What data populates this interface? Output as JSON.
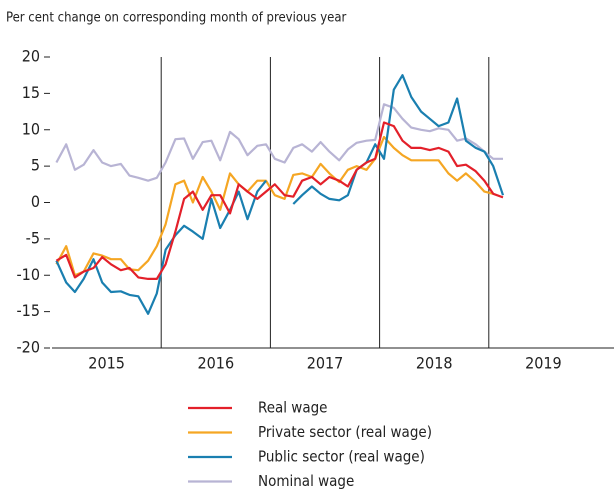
{
  "chart_data": {
    "type": "line",
    "title": "Per cent change on corresponding month of previous year",
    "x": [
      2015.04,
      2015.13,
      2015.21,
      2015.29,
      2015.38,
      2015.46,
      2015.54,
      2015.63,
      2015.71,
      2015.79,
      2015.88,
      2015.96,
      2016.04,
      2016.13,
      2016.21,
      2016.29,
      2016.38,
      2016.46,
      2016.54,
      2016.63,
      2016.71,
      2016.79,
      2016.88,
      2016.96,
      2017.04,
      2017.13,
      2017.21,
      2017.29,
      2017.38,
      2017.46,
      2017.54,
      2017.63,
      2017.71,
      2017.79,
      2017.88,
      2017.96,
      2018.04,
      2018.13,
      2018.21,
      2018.29,
      2018.38,
      2018.46,
      2018.54,
      2018.63,
      2018.71,
      2018.79,
      2018.88,
      2018.96,
      2019.04,
      2019.13
    ],
    "series": [
      {
        "name": "Real wage",
        "color": "#e3202a",
        "values": [
          -8,
          -7.2,
          -10.3,
          -9.5,
          -9,
          -7.5,
          -8.5,
          -9.3,
          -9,
          -10.3,
          -10.5,
          -10.5,
          -8.5,
          -4,
          0.5,
          1.5,
          -1,
          1,
          1,
          -1.5,
          2.5,
          1.5,
          0.5,
          1.5,
          2.5,
          1,
          0.8,
          3,
          3.5,
          2.5,
          3.5,
          3,
          2.2,
          4.5,
          5.5,
          6,
          11,
          10.5,
          8.5,
          7.5,
          7.5,
          7.2,
          7.5,
          7,
          5,
          5.2,
          4.3,
          3,
          1.2,
          0.7
        ]
      },
      {
        "name": "Private sector (real wage)",
        "color": "#f5a623",
        "values": [
          -8.5,
          -6,
          -10,
          -9.5,
          -7,
          -7.3,
          -7.8,
          -7.8,
          -9.2,
          -9.3,
          -8,
          -6,
          -3,
          2.5,
          3,
          0,
          3.5,
          1.5,
          -1,
          4,
          2.5,
          1.5,
          3,
          3,
          1,
          0.5,
          3.8,
          4,
          3.5,
          5.3,
          4,
          2.8,
          4.5,
          5,
          4.5,
          6,
          9,
          7.5,
          6.5,
          5.8,
          5.8,
          5.8,
          5.8,
          4,
          3,
          4,
          2.8,
          1.5,
          1.2,
          null
        ]
      },
      {
        "name": "Public sector (real wage)",
        "color": "#1a7fb0",
        "values": [
          -8,
          -11,
          -12.3,
          -10.5,
          -7.8,
          -11,
          -12.3,
          -12.2,
          -12.7,
          -12.9,
          -15.3,
          -12.5,
          -6.5,
          -4.5,
          -3.2,
          -4,
          -5,
          0.5,
          -3.5,
          -1,
          1.5,
          -2.3,
          1.5,
          3,
          null,
          null,
          -0.2,
          1,
          2.2,
          1.2,
          0.5,
          0.3,
          1,
          4.5,
          5.5,
          8,
          6,
          15.5,
          17.5,
          14.5,
          12.5,
          11.5,
          10.5,
          11,
          14.3,
          8.5,
          7.5,
          7,
          5,
          1
        ]
      },
      {
        "name": "Nominal wage",
        "color": "#b8b4d4",
        "values": [
          5.5,
          8,
          4.5,
          5.2,
          7.2,
          5.5,
          5,
          5.3,
          3.7,
          3.4,
          3,
          3.4,
          5.5,
          8.7,
          8.8,
          6,
          8.3,
          8.5,
          5.8,
          9.7,
          8.7,
          6.5,
          7.8,
          8,
          6,
          5.5,
          7.5,
          8,
          7,
          8.3,
          7,
          5.8,
          7.3,
          8.2,
          8.5,
          8.6,
          13.5,
          13,
          11.5,
          10.3,
          10,
          9.8,
          10.2,
          10,
          8.5,
          8.8,
          8,
          7,
          6,
          6
        ]
      }
    ],
    "xlim": [
      2015,
      2020
    ],
    "xticks": [
      {
        "value": 2015.5,
        "label": "2015"
      },
      {
        "value": 2016.5,
        "label": "2016"
      },
      {
        "value": 2017.5,
        "label": "2017"
      },
      {
        "value": 2018.5,
        "label": "2018"
      },
      {
        "value": 2019.5,
        "label": "2019"
      }
    ],
    "xgrid": [
      2016,
      2017,
      2018,
      2019
    ],
    "ylim": [
      -20,
      20
    ],
    "yticks": [
      -20,
      -15,
      -10,
      -5,
      0,
      5,
      10,
      15,
      20
    ]
  }
}
